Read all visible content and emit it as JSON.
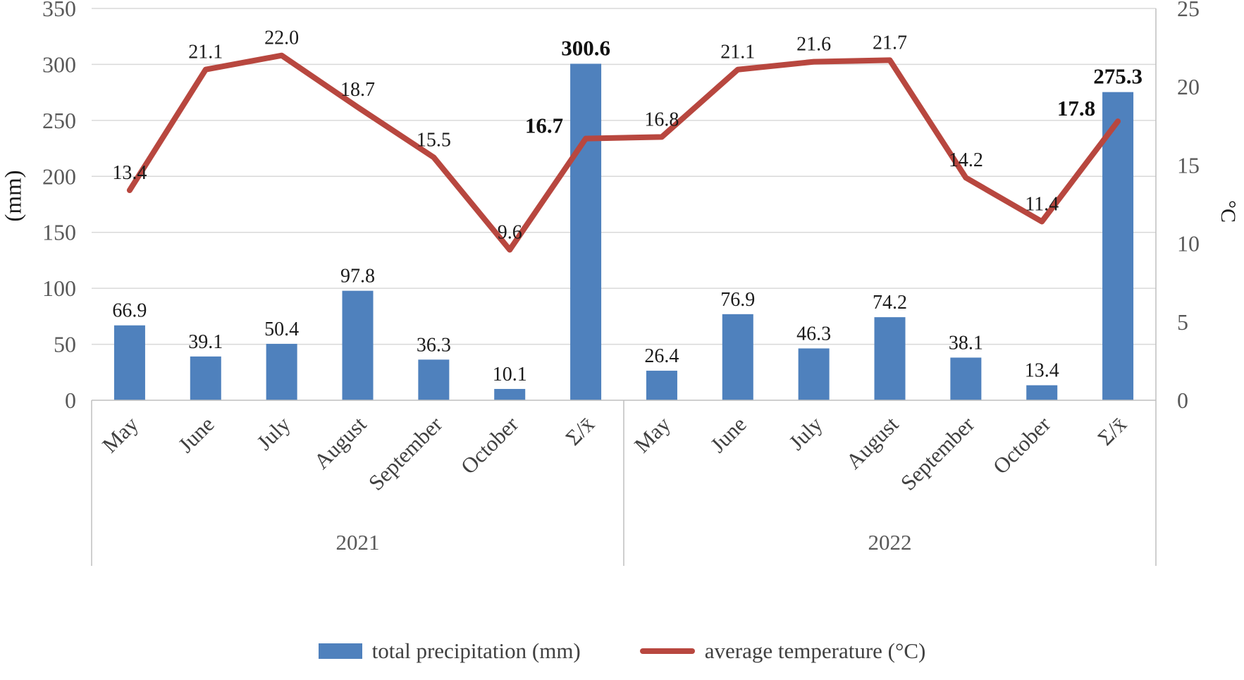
{
  "chart_data": {
    "type": "bar+line",
    "title": "",
    "groups": [
      {
        "label": "2021",
        "categories": [
          "May",
          "June",
          "July",
          "August",
          "September",
          "October",
          "Σ/x̄"
        ],
        "precipitation_mm": [
          66.9,
          39.1,
          50.4,
          97.8,
          36.3,
          10.1,
          300.6
        ],
        "temperature_c": [
          13.4,
          21.1,
          22.0,
          18.7,
          15.5,
          9.6,
          16.7
        ]
      },
      {
        "label": "2022",
        "categories": [
          "May",
          "June",
          "July",
          "August",
          "September",
          "October",
          "Σ/x̄"
        ],
        "precipitation_mm": [
          26.4,
          76.9,
          46.3,
          74.2,
          38.1,
          13.4,
          275.3
        ],
        "temperature_c": [
          16.8,
          21.1,
          21.6,
          21.7,
          14.2,
          11.4,
          17.8
        ]
      }
    ],
    "left_axis": {
      "label": "(mm)",
      "min": 0,
      "max": 350,
      "step": 50,
      "ticks": [
        "0",
        "50",
        "100",
        "150",
        "200",
        "250",
        "300",
        "350"
      ]
    },
    "right_axis": {
      "label": "°C",
      "min": 0,
      "max": 25,
      "step": 5,
      "ticks": [
        "0",
        "5",
        "10",
        "15",
        "20",
        "25"
      ]
    },
    "legend": [
      {
        "swatch": "bar",
        "label": "total precipitation (mm)"
      },
      {
        "swatch": "line",
        "label": "average temperature (°C)"
      }
    ],
    "legend_position": "bottom",
    "grid": "horizontal",
    "colors": {
      "bar": "#4f81bd",
      "line": "#b8473f",
      "grid": "#d9d9d9",
      "axis": "#bfbfbf",
      "tick_text": "#595959",
      "data_label": "#1a1a1a"
    }
  }
}
